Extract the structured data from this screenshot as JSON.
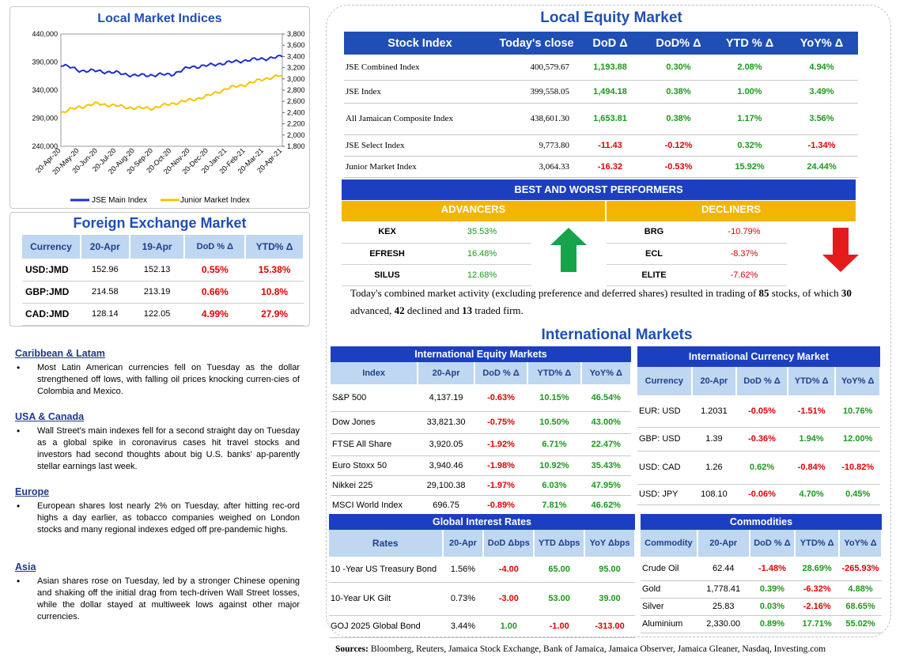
{
  "chart": {
    "title": "Local Market Indices",
    "left_ticks": [
      "440,000",
      "390,000",
      "340,000",
      "290,000",
      "240,000"
    ],
    "right_ticks": [
      "3,800",
      "3,600",
      "3,400",
      "3,200",
      "3,000",
      "2,800",
      "2,600",
      "2,400",
      "2,200",
      "2,000",
      "1,800"
    ],
    "x_ticks": [
      "20-Apr-20",
      "20-May-20",
      "20-Jun-20",
      "20-Jul-20",
      "20-Aug-20",
      "20-Sep-20",
      "20-Oct-20",
      "20-Nov-20",
      "20-Dec-20",
      "20-Jan-21",
      "20-Feb-21",
      "20-Mar-21",
      "20-Apr-21"
    ],
    "legend": [
      "JSE Main Index",
      "Junior Market Index"
    ],
    "colors": {
      "main": "#1f2fd0",
      "junior": "#f5c400"
    }
  },
  "chart_data": {
    "type": "line",
    "x": [
      "20-Apr-20",
      "20-May-20",
      "20-Jun-20",
      "20-Jul-20",
      "20-Aug-20",
      "20-Sep-20",
      "20-Oct-20",
      "20-Nov-20",
      "20-Dec-20",
      "20-Jan-21",
      "20-Feb-21",
      "20-Mar-21",
      "20-Apr-21"
    ],
    "series": [
      {
        "name": "JSE Main Index",
        "axis": "left",
        "values": [
          386000,
          375000,
          374000,
          371000,
          366000,
          367000,
          368000,
          381000,
          384000,
          389000,
          393000,
          396000,
          399558
        ]
      },
      {
        "name": "Junior Market Index",
        "axis": "right",
        "values": [
          2400,
          2500,
          2560,
          2520,
          2480,
          2480,
          2560,
          2620,
          2700,
          2830,
          2900,
          3000,
          3064
        ]
      }
    ],
    "ylim_left": [
      240000,
      440000
    ],
    "ylim_right": [
      1800,
      3800
    ],
    "legend_position": "bottom"
  },
  "fx": {
    "title": "Foreign Exchange Market",
    "headers": [
      "Currency",
      "20-Apr",
      "19-Apr",
      "DoD % Δ",
      "YTD% Δ"
    ],
    "rows": [
      [
        "USD:JMD",
        "152.96",
        "152.13",
        "0.55%",
        "15.38%"
      ],
      [
        "GBP:JMD",
        "214.58",
        "213.19",
        "0.66%",
        "10.8%"
      ],
      [
        "CAD:JMD",
        "128.14",
        "122.05",
        "4.99%",
        "27.9%"
      ]
    ]
  },
  "news": [
    {
      "head": "Caribbean & Latam",
      "body": "Most Latin American currencies fell on Tuesday as the dollar strengthened off lows, with falling oil prices knocking curren-cies of Colombia and Mexico."
    },
    {
      "head": "USA & Canada",
      "body": "Wall Street's main indexes fell for a second straight day on Tuesday as a global spike in coronavirus cases hit travel stocks and investors had second thoughts about big U.S. banks' ap-parently stellar earnings last week."
    },
    {
      "head": "Europe",
      "body": "European shares lost nearly 2% on Tuesday, after hitting rec-ord highs a day earlier, as tobacco companies weighed on London stocks and many regional indexes edged off pre-pandemic highs."
    },
    {
      "head": "Asia",
      "body": "Asian shares rose on Tuesday, led by a stronger Chinese opening and shaking off the initial drag from tech-driven Wall Street losses, while the dollar stayed at multiweek lows against other major currencies."
    }
  ],
  "equity": {
    "title": "Local Equity Market",
    "headers": [
      "Stock Index",
      "Today's close",
      "DoD  Δ",
      "DoD% Δ",
      "YTD % Δ",
      "YoY% Δ"
    ],
    "rows": [
      [
        "JSE Combined Index",
        "400,579.67",
        "1,193.88",
        "0.30%",
        "2.08%",
        "4.94%"
      ],
      [
        "JSE Index",
        "399,558.05",
        "1,494.18",
        "0.38%",
        "1.00%",
        "3.49%"
      ],
      [
        "All Jamaican Composite Index",
        "438,601.30",
        "1,653.81",
        "0.38%",
        "1.17%",
        "3.56%"
      ],
      [
        "JSE Select Index",
        "9,773.80",
        "-11.43",
        "-0.12%",
        "0.32%",
        "-1.34%"
      ],
      [
        "Junior Market Index",
        "3,064.33",
        "-16.32",
        "-0.53%",
        "15.92%",
        "24.44%"
      ]
    ]
  },
  "performers": {
    "title": "BEST AND WORST PERFORMERS",
    "advancers_label": "ADVANCERS",
    "decliners_label": "DECLINERS",
    "advancers": [
      [
        "KEX",
        "35.53%"
      ],
      [
        "EFRESH",
        "16.48%"
      ],
      [
        "SILUS",
        "12.68%"
      ]
    ],
    "decliners": [
      [
        "BRG",
        "-10.79%"
      ],
      [
        "ECL",
        "-8.37%"
      ],
      [
        "ELITE",
        "-7.62%"
      ]
    ]
  },
  "summary": {
    "t1": "Today's combined market activity (excluding preference and deferred shares) resulted in trading of ",
    "n1": "85",
    "t2": "stocks, of which ",
    "n2": "30",
    "t3": " advanced, ",
    "n3": "42",
    "t4": " declined and ",
    "n4": "13",
    "t5": " traded firm."
  },
  "intl_title": "International Markets",
  "intl_equity": {
    "title": "International Equity Markets",
    "headers": [
      "Index",
      "20-Apr",
      "DoD % Δ",
      "YTD% Δ",
      "YoY% Δ"
    ],
    "rows": [
      [
        "S&P 500",
        "4,137.19",
        "-0.63%",
        "10.15%",
        "46.54%"
      ],
      [
        "Dow Jones",
        "33,821.30",
        "-0.75%",
        "10.50%",
        "43.00%"
      ],
      [
        "FTSE All Share",
        "3,920.05",
        "-1.92%",
        "6.71%",
        "22.47%"
      ],
      [
        "Euro Stoxx 50",
        "3,940.46",
        "-1.98%",
        "10.92%",
        "35.43%"
      ],
      [
        "Nikkei 225",
        "29,100.38",
        "-1.97%",
        "6.03%",
        "47.95%"
      ],
      [
        "MSCI World Index",
        "696.75",
        "-0.89%",
        "7.81%",
        "46.62%"
      ]
    ]
  },
  "intl_currency": {
    "title": "International Currency Market",
    "headers": [
      "Currency",
      "20-Apr",
      "DoD % Δ",
      "YTD% Δ",
      "YoY% Δ"
    ],
    "rows": [
      [
        "EUR: USD",
        "1.2031",
        "-0.05%",
        "-1.51%",
        "10.76%"
      ],
      [
        "GBP: USD",
        "1.39",
        "-0.36%",
        "1.94%",
        "12.00%"
      ],
      [
        "USD: CAD",
        "1.26",
        "0.62%",
        "-0.84%",
        "-10.82%"
      ],
      [
        "USD: JPY",
        "108.10",
        "-0.06%",
        "4.70%",
        "0.45%"
      ]
    ]
  },
  "rates": {
    "title": "Global Interest Rates",
    "headers": [
      "Rates",
      "20-Apr",
      "DoD Δbps",
      "YTD Δbps",
      "YoY Δbps"
    ],
    "rows": [
      [
        "10 -Year US Treasury Bond",
        "1.56%",
        "-4.00",
        "65.00",
        "95.00"
      ],
      [
        "10-Year UK Gilt",
        "0.73%",
        "-3.00",
        "53.00",
        "39.00"
      ],
      [
        "GOJ 2025 Global Bond",
        "3.44%",
        "1.00",
        "-1.00",
        "-313.00"
      ]
    ]
  },
  "commodities": {
    "title": "Commodities",
    "headers": [
      "Commodity",
      "20-Apr",
      "DoD % Δ",
      "YTD% Δ",
      "YoY% Δ"
    ],
    "rows": [
      [
        "Crude Oil",
        "62.44",
        "-1.48%",
        "28.69%",
        "-265.93%"
      ],
      [
        "Gold",
        "1,778.41",
        "0.39%",
        "-6.32%",
        "4.88%"
      ],
      [
        "Silver",
        "25.83",
        "0.03%",
        "-2.16%",
        "68.65%"
      ],
      [
        "Aluminium",
        "2,330.00",
        "0.89%",
        "17.71%",
        "55.02%"
      ]
    ]
  },
  "sources": {
    "label": "Sources:",
    "text": " Bloomberg, Reuters, Jamaica Stock Exchange, Bank of Jamaica, Jamaica Observer, Jamaica Gleaner, Nasdaq, Investing.com"
  }
}
